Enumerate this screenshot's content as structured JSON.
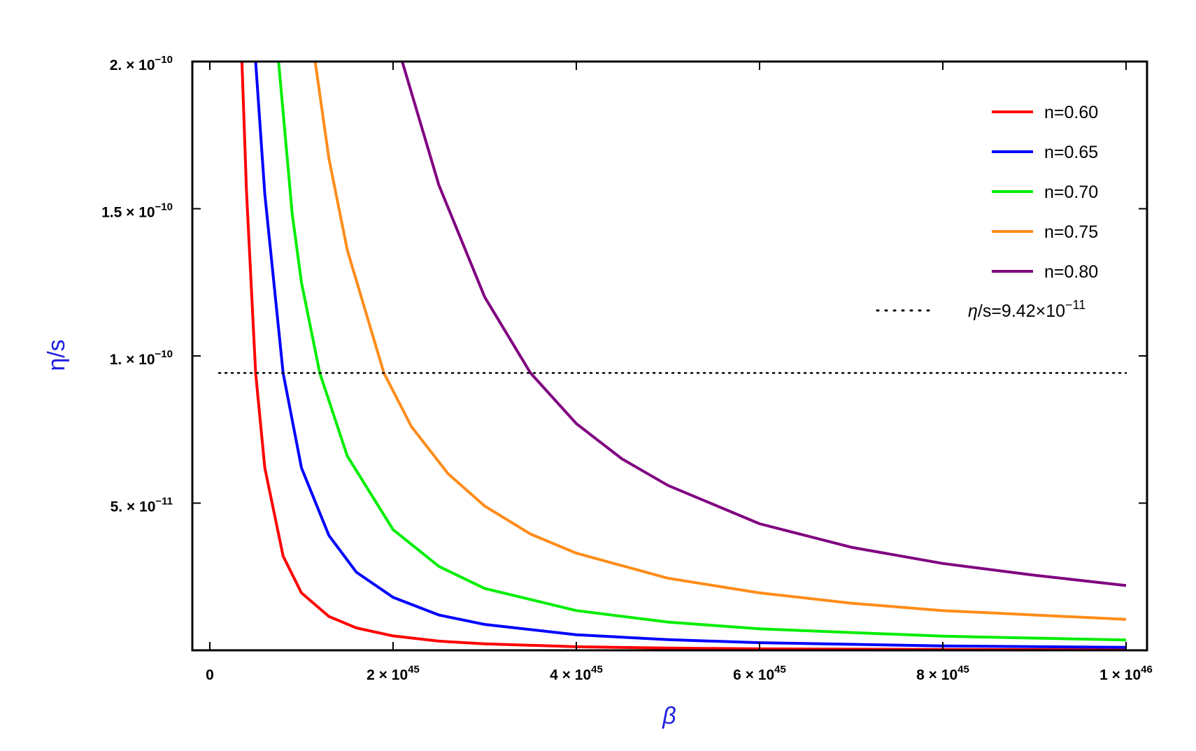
{
  "chart_data": {
    "type": "line",
    "xlabel": "β",
    "ylabel": "η/s",
    "xlim": [
      0,
      1e+46
    ],
    "ylim": [
      0,
      2e-10
    ],
    "x_scale": 1e+45,
    "x_ticks": [
      {
        "value": 0,
        "mant": "0",
        "exp": ""
      },
      {
        "value": 2e+45,
        "mant": "2 × 10",
        "exp": "45"
      },
      {
        "value": 4e+45,
        "mant": "4 × 10",
        "exp": "45"
      },
      {
        "value": 6e+45,
        "mant": "6 × 10",
        "exp": "45"
      },
      {
        "value": 8e+45,
        "mant": "8 × 10",
        "exp": "45"
      },
      {
        "value": 1e+46,
        "mant": "1 × 10",
        "exp": "46"
      }
    ],
    "y_ticks": [
      {
        "value": 5e-11,
        "mant": "5. × 10",
        "exp": "−11"
      },
      {
        "value": 1e-10,
        "mant": "1. × 10",
        "exp": "−10"
      },
      {
        "value": 1.5e-10,
        "mant": "1.5 × 10",
        "exp": "−10"
      },
      {
        "value": 2e-10,
        "mant": "2. × 10",
        "exp": "−10"
      }
    ],
    "series": [
      {
        "name": "n=0.60",
        "color": "#ff0000",
        "x": [
          0.35,
          0.4,
          0.5,
          0.6,
          0.8,
          1.0,
          1.3,
          1.6,
          2.0,
          2.5,
          3.0,
          4.0,
          5.0,
          6.0,
          8.0,
          10.0
        ],
        "y": [
          2e-10,
          1.56e-10,
          9.42e-11,
          6.2e-11,
          3.2e-11,
          1.95e-11,
          1.15e-11,
          7.6e-12,
          4.9e-12,
          3.1e-12,
          2.2e-12,
          1.2e-12,
          7.5e-13,
          5e-13,
          2.8e-13,
          1.8e-13
        ]
      },
      {
        "name": "n=0.65",
        "color": "#0000ff",
        "x": [
          0.5,
          0.6,
          0.8,
          1.0,
          1.3,
          1.6,
          2.0,
          2.5,
          3.0,
          4.0,
          5.0,
          6.0,
          8.0,
          10.0
        ],
        "y": [
          2e-10,
          1.55e-10,
          9.42e-11,
          6.2e-11,
          3.9e-11,
          2.65e-11,
          1.8e-11,
          1.2e-11,
          8.8e-12,
          5.3e-12,
          3.6e-12,
          2.6e-12,
          1.5e-12,
          1e-12
        ]
      },
      {
        "name": "n=0.70",
        "color": "#00ee00",
        "x": [
          0.75,
          0.9,
          1.0,
          1.2,
          1.5,
          2.0,
          2.5,
          3.0,
          4.0,
          5.0,
          6.0,
          8.0,
          10.0
        ],
        "y": [
          2e-10,
          1.48e-10,
          1.25e-10,
          9.42e-11,
          6.6e-11,
          4.1e-11,
          2.85e-11,
          2.1e-11,
          1.35e-11,
          9.6e-12,
          7.3e-12,
          4.8e-12,
          3.5e-12
        ]
      },
      {
        "name": "n=0.75",
        "color": "#ff8c1a",
        "x": [
          1.15,
          1.3,
          1.5,
          1.9,
          2.2,
          2.6,
          3.0,
          3.5,
          4.0,
          5.0,
          6.0,
          7.0,
          8.0,
          10.0
        ],
        "y": [
          2e-10,
          1.67e-10,
          1.36e-10,
          9.42e-11,
          7.6e-11,
          6e-11,
          4.9e-11,
          3.95e-11,
          3.3e-11,
          2.45e-11,
          1.95e-11,
          1.6e-11,
          1.35e-11,
          1.05e-11
        ]
      },
      {
        "name": "n=0.80",
        "color": "#800080",
        "x": [
          2.1,
          2.5,
          3.0,
          3.5,
          4.0,
          4.5,
          5.0,
          6.0,
          7.0,
          8.0,
          9.0,
          10.0
        ],
        "y": [
          2e-10,
          1.58e-10,
          1.2e-10,
          9.42e-11,
          7.7e-11,
          6.5e-11,
          5.6e-11,
          4.3e-11,
          3.5e-11,
          2.95e-11,
          2.55e-11,
          2.2e-11
        ]
      }
    ],
    "reference_line": {
      "label_italic": "η",
      "label_text": "/s=9.42×10",
      "label_exp": "−11",
      "y": 9.42e-11,
      "x": [
        0.1,
        10.0
      ],
      "style": "dotted",
      "color": "#000000"
    },
    "legend_position": "top-right",
    "grid": false
  }
}
